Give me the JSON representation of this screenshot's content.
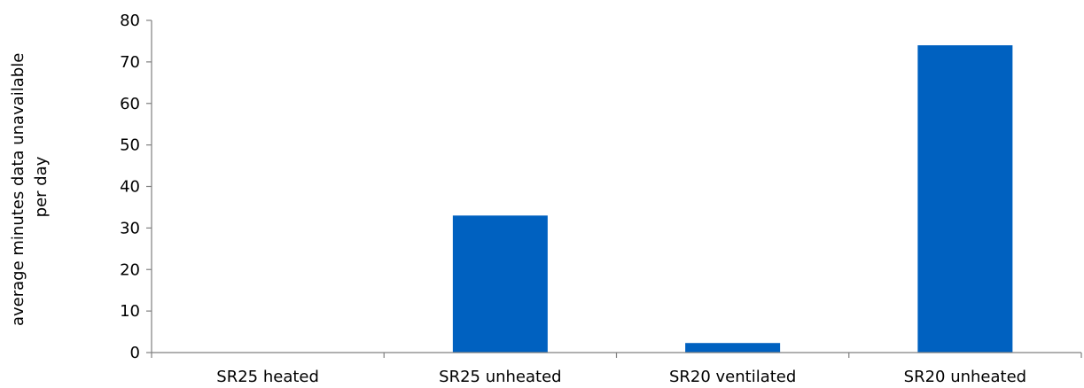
{
  "chart_data": {
    "type": "bar",
    "title": "",
    "xlabel": "",
    "ylabel_lines": [
      "average minutes data unavailable",
      "per day"
    ],
    "categories": [
      "SR25 heated",
      "SR25 unheated",
      "SR20 ventilated",
      "SR20 unheated"
    ],
    "values": [
      0,
      33,
      2.3,
      74
    ],
    "ylim": [
      0,
      80
    ],
    "yticks": [
      "0",
      "10",
      "20",
      "30",
      "40",
      "50",
      "60",
      "70",
      "80"
    ],
    "grid": false,
    "legend": "none",
    "bar_color": "#0061c0",
    "axis_color": "#808080"
  }
}
